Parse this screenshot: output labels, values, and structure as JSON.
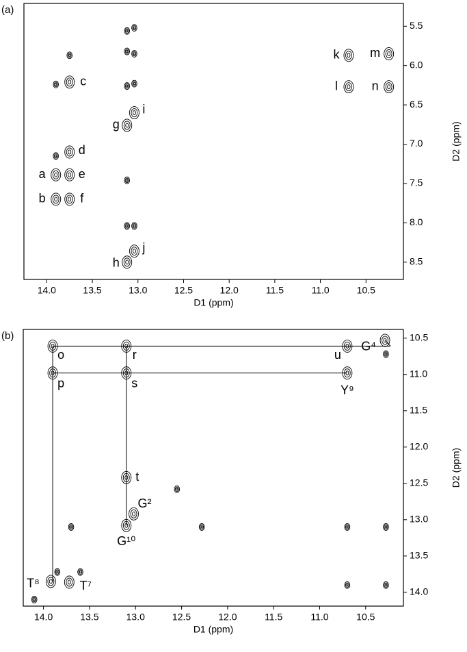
{
  "chart_data": [
    {
      "type": "scatter",
      "panel_label": "(a)",
      "xlabel": "D1 (ppm)",
      "ylabel": "D2 (ppm)",
      "x_inverted": true,
      "y_inverted": true,
      "xlim": [
        10.09,
        14.25
      ],
      "ylim": [
        5.21,
        8.72
      ],
      "xticks": [
        {
          "value": 14,
          "label": "14.0"
        },
        13.5,
        {
          "value": 13,
          "label": "13.0"
        },
        12.5,
        {
          "value": 12,
          "label": "12.0"
        },
        11.5,
        {
          "value": 11,
          "label": "11.0"
        },
        10.5
      ],
      "yticks": [
        5.5,
        {
          "value": 6,
          "label": "6.0"
        },
        6.5,
        {
          "value": 7,
          "label": "7.0"
        },
        7.5,
        {
          "value": 8,
          "label": "8.0"
        },
        8.5
      ],
      "x": [
        13.9,
        13.9,
        13.75,
        13.75,
        13.75,
        13.75,
        13.12,
        13.12,
        13.04,
        13.04,
        10.69,
        10.69,
        10.25,
        10.25,
        13.12,
        13.04,
        13.12,
        13.04,
        13.12,
        13.04,
        13.75,
        13.9,
        13.9,
        13.12,
        13.12,
        13.04
      ],
      "values": [
        7.39,
        7.7,
        6.21,
        7.1,
        7.39,
        7.7,
        6.76,
        8.5,
        6.6,
        8.36,
        5.87,
        6.27,
        5.85,
        6.27,
        5.56,
        5.52,
        5.82,
        5.85,
        6.26,
        6.23,
        5.87,
        6.24,
        7.15,
        7.46,
        8.04,
        8.04
      ],
      "labels": [
        "a",
        "b",
        "c",
        "d",
        "e",
        "f",
        "g",
        "h",
        "i",
        "j",
        "k",
        "l",
        "m",
        "n",
        null,
        null,
        null,
        null,
        null,
        null,
        null,
        null,
        null,
        null,
        null,
        null
      ]
    },
    {
      "type": "scatter",
      "panel_label": "(b)",
      "xlabel": "D1 (ppm)",
      "ylabel": "D2 (ppm)",
      "x_inverted": true,
      "y_inverted": true,
      "xlim": [
        10.09,
        14.22
      ],
      "ylim": [
        10.38,
        14.19
      ],
      "xticks": [
        {
          "value": 14,
          "label": "14.0"
        },
        13.5,
        {
          "value": 13,
          "label": "13.0"
        },
        12.5,
        {
          "value": 12,
          "label": "12.0"
        },
        11.5,
        {
          "value": 11,
          "label": "11.0"
        },
        10.5
      ],
      "yticks": [
        10.5,
        {
          "value": 11,
          "label": "11.0"
        },
        11.5,
        {
          "value": 12,
          "label": "12.0"
        },
        12.5,
        {
          "value": 13,
          "label": "13.0"
        },
        13.5,
        {
          "value": 14,
          "label": "14.0"
        }
      ],
      "x": [
        13.9,
        13.9,
        13.1,
        13.1,
        10.7,
        10.29,
        10.7,
        13.1,
        13.02,
        13.1,
        13.92,
        13.72,
        12.28,
        12.55,
        10.7,
        10.28,
        10.7,
        10.28,
        10.28,
        13.7,
        14.1,
        13.85,
        13.6
      ],
      "values": [
        10.61,
        10.98,
        10.61,
        10.98,
        10.61,
        10.53,
        10.98,
        12.42,
        12.92,
        13.08,
        13.85,
        13.86,
        13.1,
        12.58,
        13.9,
        13.9,
        13.1,
        13.1,
        10.72,
        13.1,
        14.1,
        13.72,
        13.72
      ],
      "labels": [
        "o",
        "p",
        "r",
        "s",
        "u",
        "G⁴",
        "Y⁹",
        "t",
        "G²",
        "G¹⁰",
        "T⁸",
        "T⁷",
        null,
        null,
        null,
        null,
        null,
        null,
        null,
        null,
        null,
        null,
        null
      ]
    }
  ]
}
